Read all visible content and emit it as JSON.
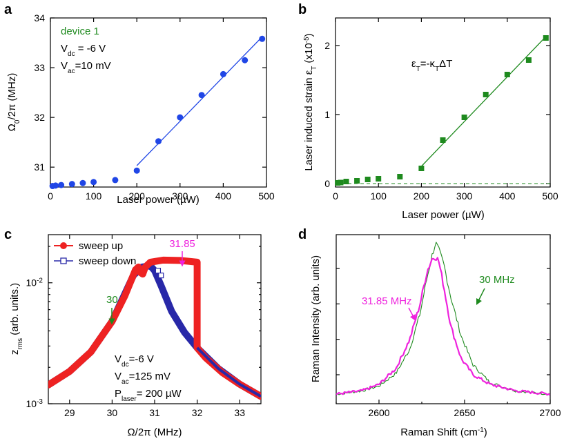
{
  "chart_data": [
    {
      "panel_label": "a",
      "type": "scatter",
      "xlabel_main": "Laser power (",
      "xlabel_unit": "µW",
      "xlabel_close": ")",
      "ylabel_main": "Ω",
      "ylabel_sub": "0",
      "ylabel_rest": "/2π (MHz)",
      "xlim": [
        0,
        500
      ],
      "ylim": [
        30.6,
        34
      ],
      "xticks": [
        0,
        100,
        200,
        300,
        400,
        500
      ],
      "yticks": [
        31,
        32,
        33,
        34
      ],
      "annotations": {
        "device": "device 1",
        "vdc_main": "V",
        "vdc_sub": "dc",
        "vdc_rest": " = -6 V",
        "vac_main": "V",
        "vac_sub": "ac",
        "vac_rest": "=10 mV"
      },
      "series": [
        {
          "name": "data",
          "color": "#2046e6",
          "x": [
            5,
            12,
            25,
            50,
            75,
            100,
            150,
            200,
            250,
            300,
            350,
            400,
            450,
            490
          ],
          "y": [
            30.62,
            30.63,
            30.64,
            30.66,
            30.68,
            30.7,
            30.74,
            30.93,
            31.52,
            32.0,
            32.45,
            32.87,
            33.15,
            33.58
          ]
        },
        {
          "name": "fit",
          "color": "#2046e6",
          "type": "line",
          "x": [
            200,
            490
          ],
          "y": [
            31.03,
            33.62
          ]
        }
      ]
    },
    {
      "panel_label": "b",
      "type": "scatter",
      "xlabel_main": "Laser power (",
      "xlabel_unit": "µW",
      "xlabel_close": ")",
      "ylabel_main": "Laser induced strain ε",
      "ylabel_sub": "T",
      "ylabel_rest": " (x10",
      "ylabel_sup": "-5",
      "ylabel_close": ")",
      "xlim": [
        0,
        500
      ],
      "ylim": [
        -0.05,
        2.4
      ],
      "xticks": [
        0,
        100,
        200,
        300,
        400,
        500
      ],
      "yticks": [
        0,
        1,
        2
      ],
      "annotations": {
        "eq_main": "ε",
        "eq_sub": "T",
        "eq_mid": "=-κ",
        "eq_sub2": "T",
        "eq_rest": "ΔT"
      },
      "series": [
        {
          "name": "data",
          "color": "#1e8a1e",
          "x": [
            5,
            12,
            25,
            50,
            75,
            100,
            150,
            200,
            250,
            300,
            350,
            400,
            450,
            490
          ],
          "y": [
            0.01,
            0.015,
            0.03,
            0.04,
            0.06,
            0.07,
            0.1,
            0.22,
            0.63,
            0.96,
            1.29,
            1.58,
            1.79,
            2.11
          ]
        },
        {
          "name": "fit",
          "color": "#1e8a1e",
          "type": "line",
          "x": [
            200,
            490
          ],
          "y": [
            0.25,
            2.13
          ]
        },
        {
          "name": "zero",
          "color": "#1e8a1e",
          "type": "dashed",
          "x": [
            0,
            500
          ],
          "y": [
            0,
            0
          ]
        }
      ]
    },
    {
      "panel_label": "c",
      "type": "line",
      "xlabel": "Ω/2π (MHz)",
      "ylabel_main": "z",
      "ylabel_sub": "rms",
      "ylabel_rest": " (arb. units.)",
      "xlim": [
        28.5,
        33.5
      ],
      "ylim_log": [
        0.001,
        0.025
      ],
      "xticks": [
        29,
        30,
        31,
        32,
        33
      ],
      "yticks": [
        {
          "value": 0.001,
          "base": "10",
          "exp": "-3"
        },
        {
          "value": 0.01,
          "base": "10",
          "exp": "-2"
        }
      ],
      "legend": [
        "sweep up",
        "sweep down"
      ],
      "annotations": {
        "arrow_30": "30",
        "arrow_3185": "31.85",
        "vdc_main": "V",
        "vdc_sub": "dc",
        "vdc_rest": "=-6 V",
        "vac_main": "V",
        "vac_sub": "ac",
        "vac_rest": "=125 mV",
        "p_main": "P",
        "p_sub": "laser",
        "p_rest": "= 200 µW"
      },
      "series": [
        {
          "name": "sweep up",
          "color": "#ee2222",
          "x": [
            28.5,
            29.0,
            29.5,
            30.0,
            30.3,
            30.55,
            30.62,
            30.66,
            30.72,
            30.78,
            30.9,
            31.2,
            31.6,
            32.0,
            32.0,
            32.2,
            32.6,
            33.0,
            33.5
          ],
          "y": [
            0.00143,
            0.00185,
            0.00268,
            0.0048,
            0.0078,
            0.0128,
            0.0135,
            0.0122,
            0.0118,
            0.0135,
            0.0148,
            0.0154,
            0.0153,
            0.0148,
            0.0029,
            0.0024,
            0.0018,
            0.00145,
            0.00115
          ]
        },
        {
          "name": "sweep down",
          "color": "#2828a8",
          "x": [
            33.5,
            33.0,
            32.5,
            32.0,
            31.7,
            31.4,
            31.15,
            31.0,
            30.9,
            30.7,
            30.5,
            30.0,
            29.5,
            29.0,
            28.5
          ],
          "y": [
            0.00115,
            0.00145,
            0.00195,
            0.0029,
            0.0039,
            0.0058,
            0.0095,
            0.0126,
            0.0138,
            0.0135,
            0.0115,
            0.0048,
            0.00268,
            0.00185,
            0.00143
          ]
        }
      ]
    },
    {
      "panel_label": "d",
      "type": "line",
      "xlabel_main": "Raman Shift (cm",
      "xlabel_sup": "-1",
      "xlabel_close": ")",
      "ylabel": "Raman Intensity (arb. units)",
      "xlim": [
        2575,
        2700
      ],
      "ylim": [
        0,
        1.05
      ],
      "xticks": [
        2600,
        2650,
        2700
      ],
      "annotations": {
        "label_3185": "31.85 MHz",
        "label_30": "30 MHz"
      },
      "series": [
        {
          "name": "31.85 MHz",
          "color": "#ee22dd",
          "x": [
            2575,
            2590,
            2600,
            2610,
            2618,
            2624,
            2628,
            2631,
            2633,
            2635,
            2638,
            2642,
            2648,
            2655,
            2665,
            2680,
            2700
          ],
          "y": [
            0.06,
            0.08,
            0.12,
            0.22,
            0.4,
            0.62,
            0.82,
            0.9,
            0.92,
            0.88,
            0.72,
            0.48,
            0.28,
            0.18,
            0.12,
            0.08,
            0.06
          ]
        },
        {
          "name": "30 MHz",
          "color": "#1e8a1e",
          "x": [
            2575,
            2590,
            2600,
            2610,
            2618,
            2624,
            2628,
            2631,
            2633,
            2635,
            2638,
            2642,
            2648,
            2655,
            2665,
            2680,
            2700
          ],
          "y": [
            0.06,
            0.08,
            0.11,
            0.19,
            0.34,
            0.56,
            0.78,
            0.92,
            1.0,
            0.95,
            0.86,
            0.66,
            0.42,
            0.24,
            0.13,
            0.08,
            0.06
          ]
        }
      ]
    }
  ]
}
